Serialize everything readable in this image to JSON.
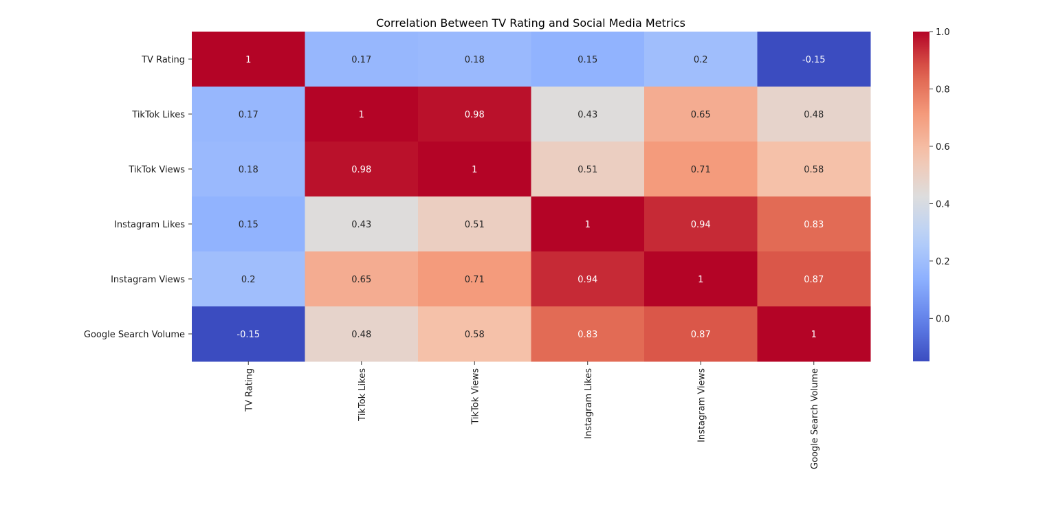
{
  "chart_data": {
    "type": "heatmap",
    "title": "Correlation Between TV Rating and Social Media Metrics",
    "rows": [
      "TV Rating",
      "TikTok Likes",
      "TikTok Views",
      "Instagram Likes",
      "Instagram Views",
      "Google Search Volume"
    ],
    "cols": [
      "TV Rating",
      "TikTok Likes",
      "TikTok Views",
      "Instagram Likes",
      "Instagram Views",
      "Google Search Volume"
    ],
    "values": [
      [
        1,
        0.17,
        0.18,
        0.15,
        0.2,
        -0.15
      ],
      [
        0.17,
        1,
        0.98,
        0.43,
        0.65,
        0.48
      ],
      [
        0.18,
        0.98,
        1,
        0.51,
        0.71,
        0.58
      ],
      [
        0.15,
        0.43,
        0.51,
        1,
        0.94,
        0.83
      ],
      [
        0.2,
        0.65,
        0.71,
        0.94,
        1,
        0.87
      ],
      [
        -0.15,
        0.48,
        0.58,
        0.83,
        0.87,
        1
      ]
    ],
    "colormap": "coolwarm",
    "vmin": -0.15,
    "vmax": 1.0,
    "colorbar_ticks": [
      "0.0",
      "0.2",
      "0.4",
      "0.6",
      "0.8",
      "1.0"
    ],
    "colorbar_tick_values": [
      0.0,
      0.2,
      0.4,
      0.6,
      0.8,
      1.0
    ],
    "annotations": true
  }
}
